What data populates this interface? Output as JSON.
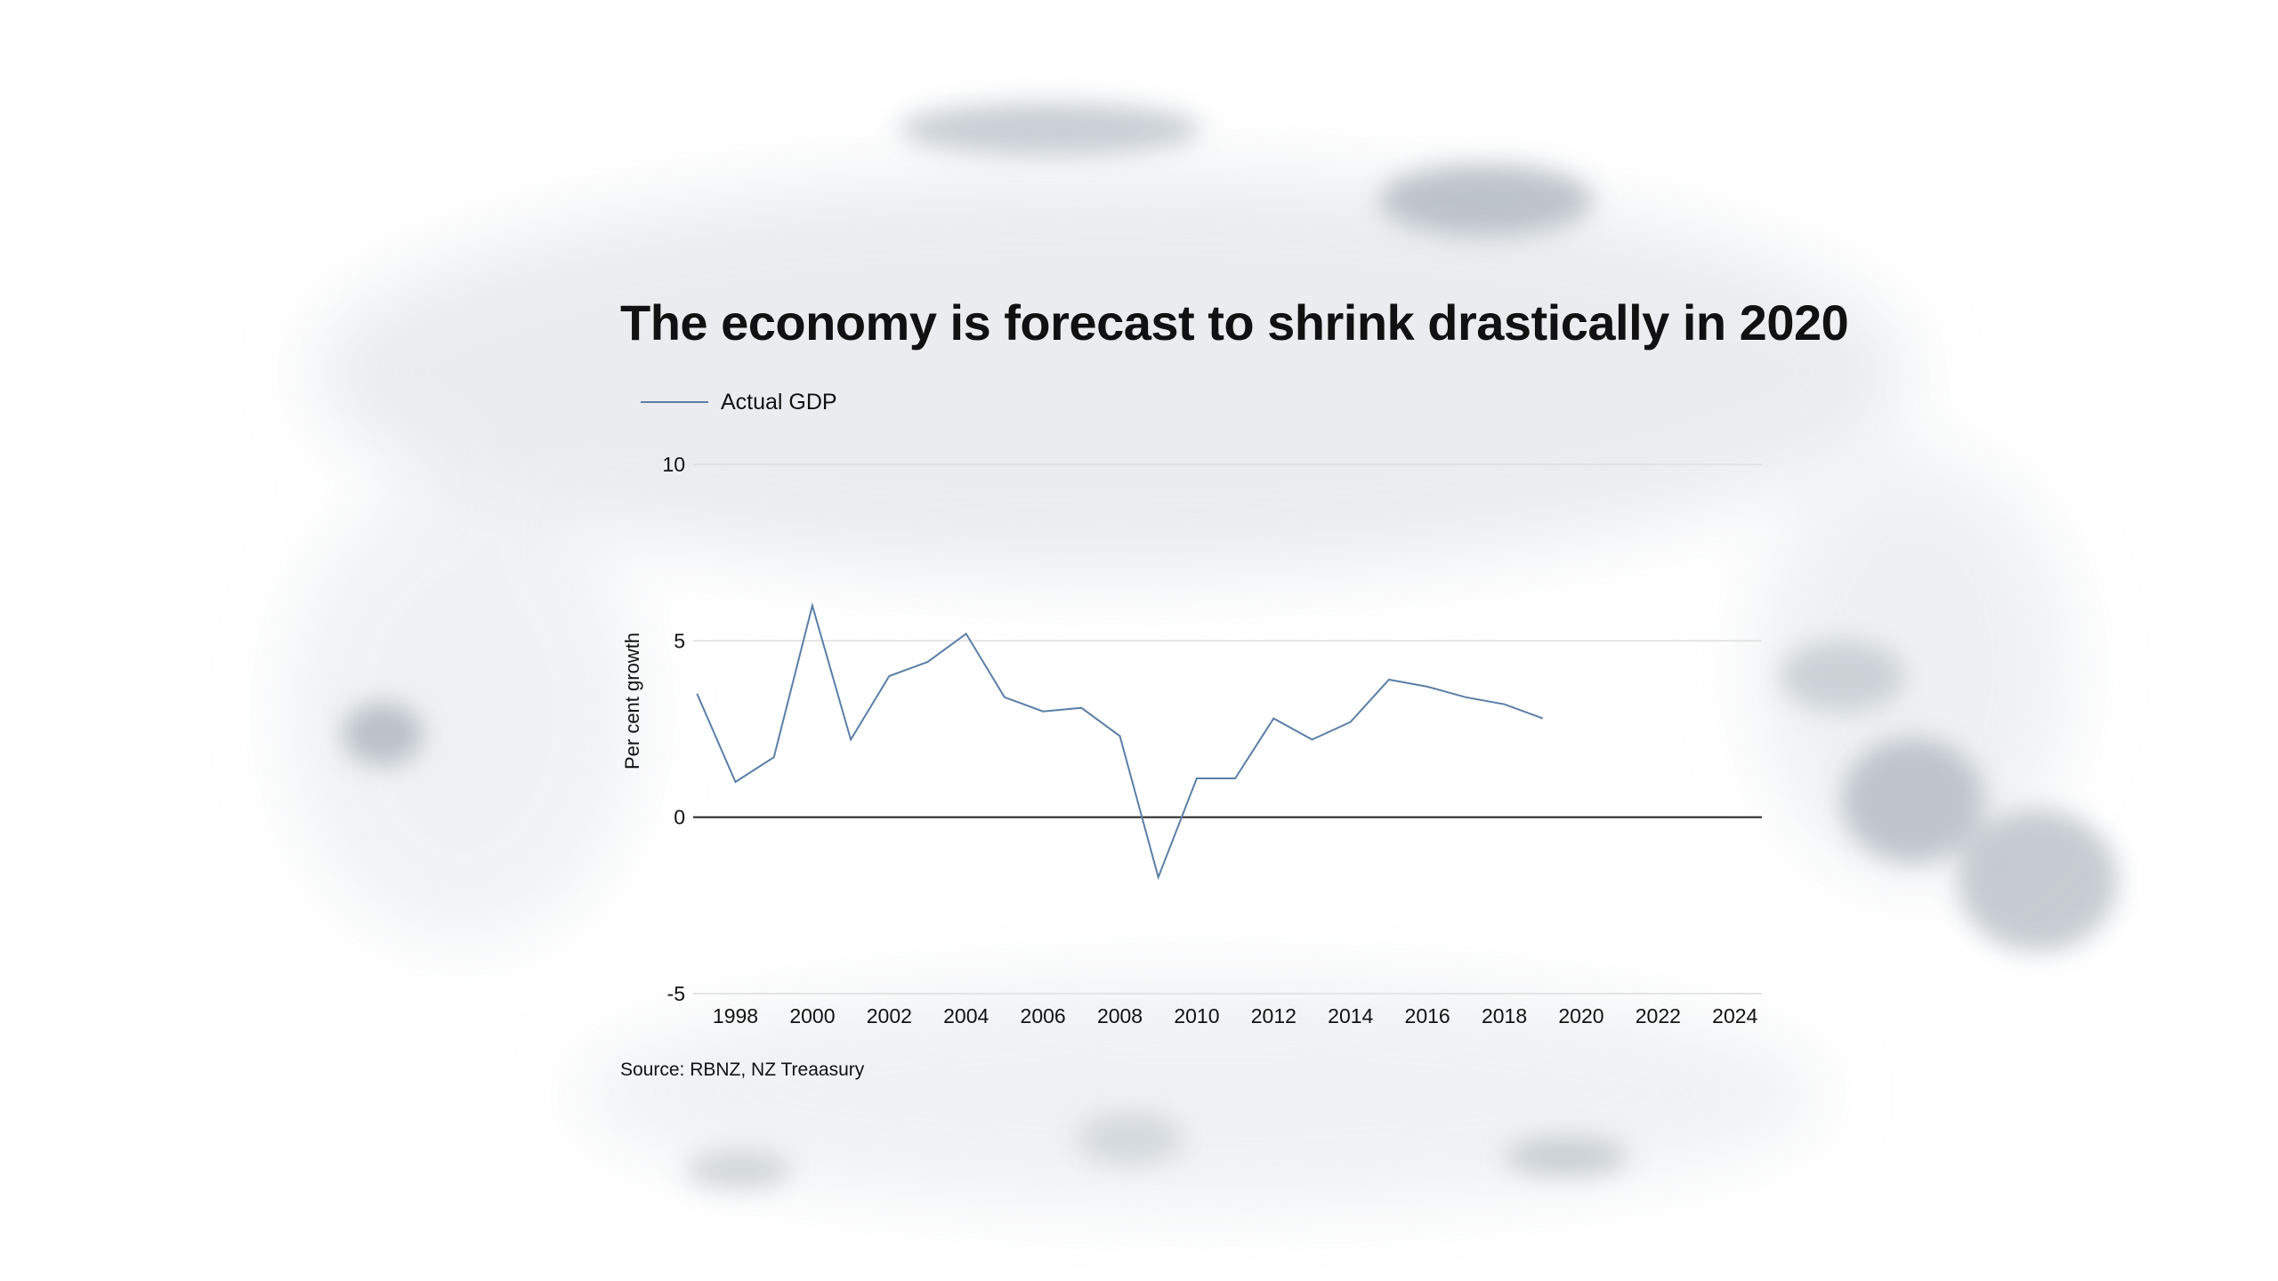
{
  "chart_data": {
    "type": "line",
    "title": "The economy is forecast to shrink drastically in 2020",
    "ylabel": "Per cent growth",
    "xlabel": "",
    "source": "Source: RBNZ, NZ Treaasury",
    "ylim": [
      -5,
      10
    ],
    "xlim": [
      1996.9,
      2024.7
    ],
    "yticks": [
      10,
      5,
      0,
      -5
    ],
    "xticks": [
      1998,
      2000,
      2002,
      2004,
      2006,
      2008,
      2010,
      2012,
      2014,
      2016,
      2018,
      2020,
      2022,
      2024
    ],
    "legend_position": "top-left",
    "series": [
      {
        "name": "Actual GDP",
        "color": "#5b7fa6",
        "x": [
          1997,
          1998,
          1999,
          2000,
          2001,
          2002,
          2003,
          2004,
          2005,
          2006,
          2007,
          2008,
          2009,
          2010,
          2011,
          2012,
          2013,
          2014,
          2015,
          2016,
          2017,
          2018,
          2019
        ],
        "values": [
          3.5,
          1.0,
          1.7,
          6.0,
          2.2,
          4.0,
          4.4,
          5.2,
          3.4,
          3.0,
          3.1,
          2.3,
          -1.7,
          1.1,
          1.1,
          2.8,
          2.2,
          2.7,
          3.9,
          3.7,
          3.4,
          3.2,
          2.8
        ]
      }
    ]
  },
  "colors": {
    "series": "#5b7fa6",
    "zero_line": "#222222",
    "grid": "#dddddd",
    "text": "#111111"
  }
}
